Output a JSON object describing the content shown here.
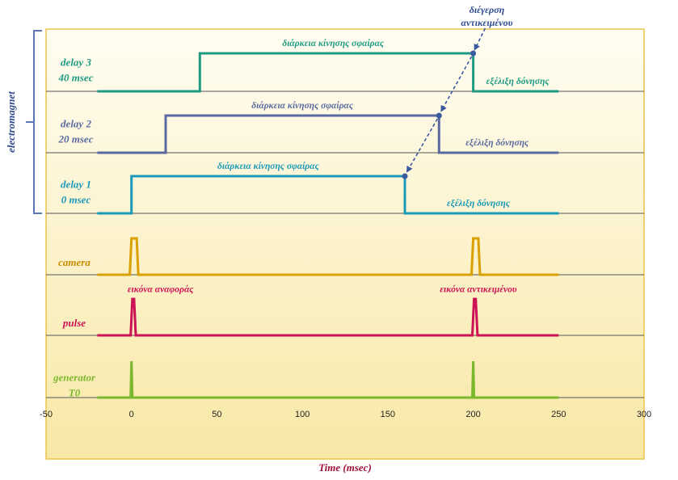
{
  "chart_data": {
    "type": "line",
    "title": "",
    "xlabel": "Time (msec)",
    "xlim": [
      -50,
      300
    ],
    "xticks": [
      -50,
      0,
      50,
      100,
      150,
      200,
      250,
      300
    ],
    "group_label": "electromagnet",
    "series": [
      {
        "name": "delay 3",
        "label": [
          "delay 3",
          "40 msec"
        ],
        "color": "#1e9a82",
        "x": [
          -20,
          40,
          40,
          200,
          200,
          250
        ],
        "y": [
          0,
          0,
          1,
          1,
          0,
          0
        ],
        "annotations": [
          {
            "text": "διάρκεια κίνησης σφαίρας",
            "x": 118,
            "y": 1.15
          },
          {
            "text": "εξέλιξη δόνησης",
            "x": 226,
            "y": 0.15
          }
        ]
      },
      {
        "name": "delay 2",
        "label": [
          "delay 2",
          "20 msec"
        ],
        "color": "#5a6aa0",
        "x": [
          -20,
          20,
          20,
          180,
          180,
          250
        ],
        "y": [
          0,
          0,
          1,
          1,
          0,
          0
        ],
        "annotations": [
          {
            "text": "διάρκεια κίνησης σφαίρας",
            "x": 100,
            "y": 1.15
          },
          {
            "text": "εξέλιξη δόνησης",
            "x": 214,
            "y": 0.15
          }
        ]
      },
      {
        "name": "delay 1",
        "label": [
          "delay 1",
          "0 msec"
        ],
        "color": "#1a9ab8",
        "x": [
          -20,
          0,
          0,
          160,
          160,
          250
        ],
        "y": [
          0,
          0,
          1,
          1,
          0,
          0
        ],
        "annotations": [
          {
            "text": "διάρκεια κίνησης σφαίρας",
            "x": 80,
            "y": 1.15
          },
          {
            "text": "εξέλιξη δόνησης",
            "x": 203,
            "y": 0.15
          }
        ]
      },
      {
        "name": "camera",
        "label": [
          "camera"
        ],
        "color": "#d9a000",
        "x": [
          -20,
          -1,
          0,
          3,
          4,
          199,
          200,
          203,
          204,
          250
        ],
        "y": [
          0,
          0,
          1,
          1,
          0,
          0,
          1,
          1,
          0,
          0
        ],
        "annotations": []
      },
      {
        "name": "pulse",
        "label": [
          "pulse"
        ],
        "color": "#cc1255",
        "x": [
          -20,
          -0.5,
          0.5,
          1.5,
          2.5,
          199.5,
          200.5,
          201.5,
          202.5,
          250
        ],
        "y": [
          0,
          0,
          1,
          1,
          0,
          0,
          1,
          1,
          0,
          0
        ],
        "annotations": [
          {
            "text": "εικόνα αναφοράς",
            "x": 17,
            "y": 1.15
          },
          {
            "text": "εικόνα αντικειμένου",
            "x": 203,
            "y": 1.15
          }
        ]
      },
      {
        "name": "generator T0",
        "label": [
          "generator",
          "T0"
        ],
        "color": "#7cb82e",
        "x": [
          -20,
          -0.5,
          0,
          0.5,
          199.5,
          200,
          200.5,
          250
        ],
        "y": [
          0,
          0,
          1,
          0,
          0,
          1,
          0,
          0
        ],
        "annotations": []
      }
    ],
    "top_annotation": [
      "διέγερση",
      "αντικειμένου"
    ],
    "arrow_points": [
      {
        "x": 200,
        "y": 1,
        "series": "delay 3"
      },
      {
        "x": 180,
        "y": 1,
        "series": "delay 2"
      },
      {
        "x": 160,
        "y": 1,
        "series": "delay 1"
      }
    ],
    "arrow_color": "#3a5aa0",
    "colors": {
      "plot_bg_top": "#fffdf2",
      "plot_bg_bottom": "#f8e8a6",
      "border": "#e8c548",
      "baseline": "#555555",
      "bracket": "#5a78b8"
    }
  }
}
